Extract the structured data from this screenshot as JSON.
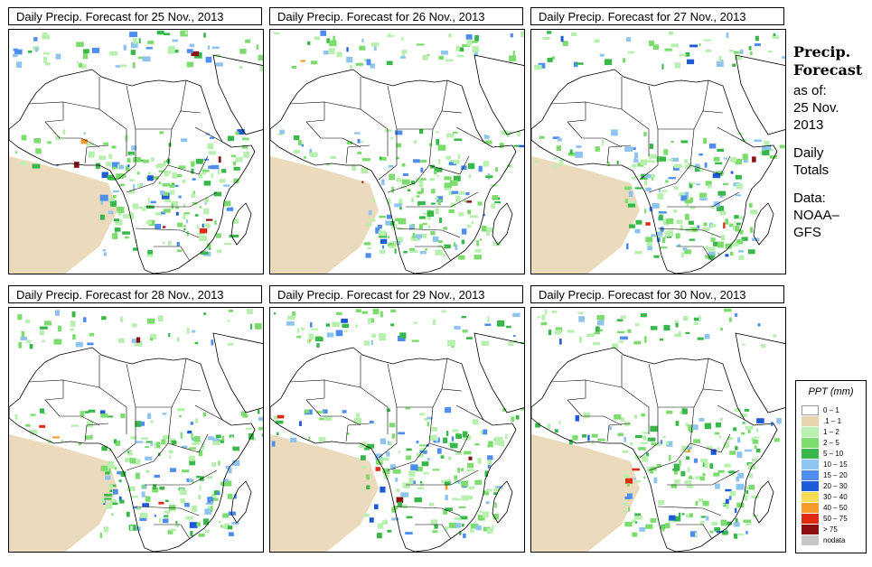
{
  "panels": [
    {
      "title": "Daily Precip. Forecast for  25 Nov., 2013"
    },
    {
      "title": "Daily Precip. Forecast for  26 Nov., 2013"
    },
    {
      "title": "Daily Precip. Forecast for  27 Nov., 2013"
    },
    {
      "title": "Daily Precip. Forecast for  28 Nov., 2013"
    },
    {
      "title": "Daily Precip. Forecast for  29 Nov., 2013"
    },
    {
      "title": "Daily Precip. Forecast for  30 Nov., 2013"
    }
  ],
  "sidebar": {
    "title_line1": "Precip.",
    "title_line2": "Forecast",
    "asof_label": "as of:",
    "asof_date1": "25 Nov.",
    "asof_date2": "2013",
    "totals_line1": "Daily",
    "totals_line2": "Totals",
    "data_label": "Data:",
    "data_source1": "NOAA–",
    "data_source2": "GFS"
  },
  "legend": {
    "title": "PPT (mm)",
    "items": [
      {
        "label": "0 – 1",
        "color": "#ffffff"
      },
      {
        "label": ".1 – 1",
        "color": "#e8d5b0"
      },
      {
        "label": "1 – 2",
        "color": "#b8f0b0"
      },
      {
        "label": "2 – 5",
        "color": "#7ddc6e"
      },
      {
        "label": "5 – 10",
        "color": "#38b84a"
      },
      {
        "label": "10 – 15",
        "color": "#8fc4f0"
      },
      {
        "label": "15 – 20",
        "color": "#4f8ef0"
      },
      {
        "label": "20 – 30",
        "color": "#1c5ad8"
      },
      {
        "label": "30 – 40",
        "color": "#f5dc50"
      },
      {
        "label": "40 – 50",
        "color": "#f59a28"
      },
      {
        "label": "50 – 75",
        "color": "#e02a14"
      },
      {
        "label": "> 75",
        "color": "#8c0f0f"
      },
      {
        "label": "nodata",
        "color": "#c8c8c8"
      }
    ]
  }
}
